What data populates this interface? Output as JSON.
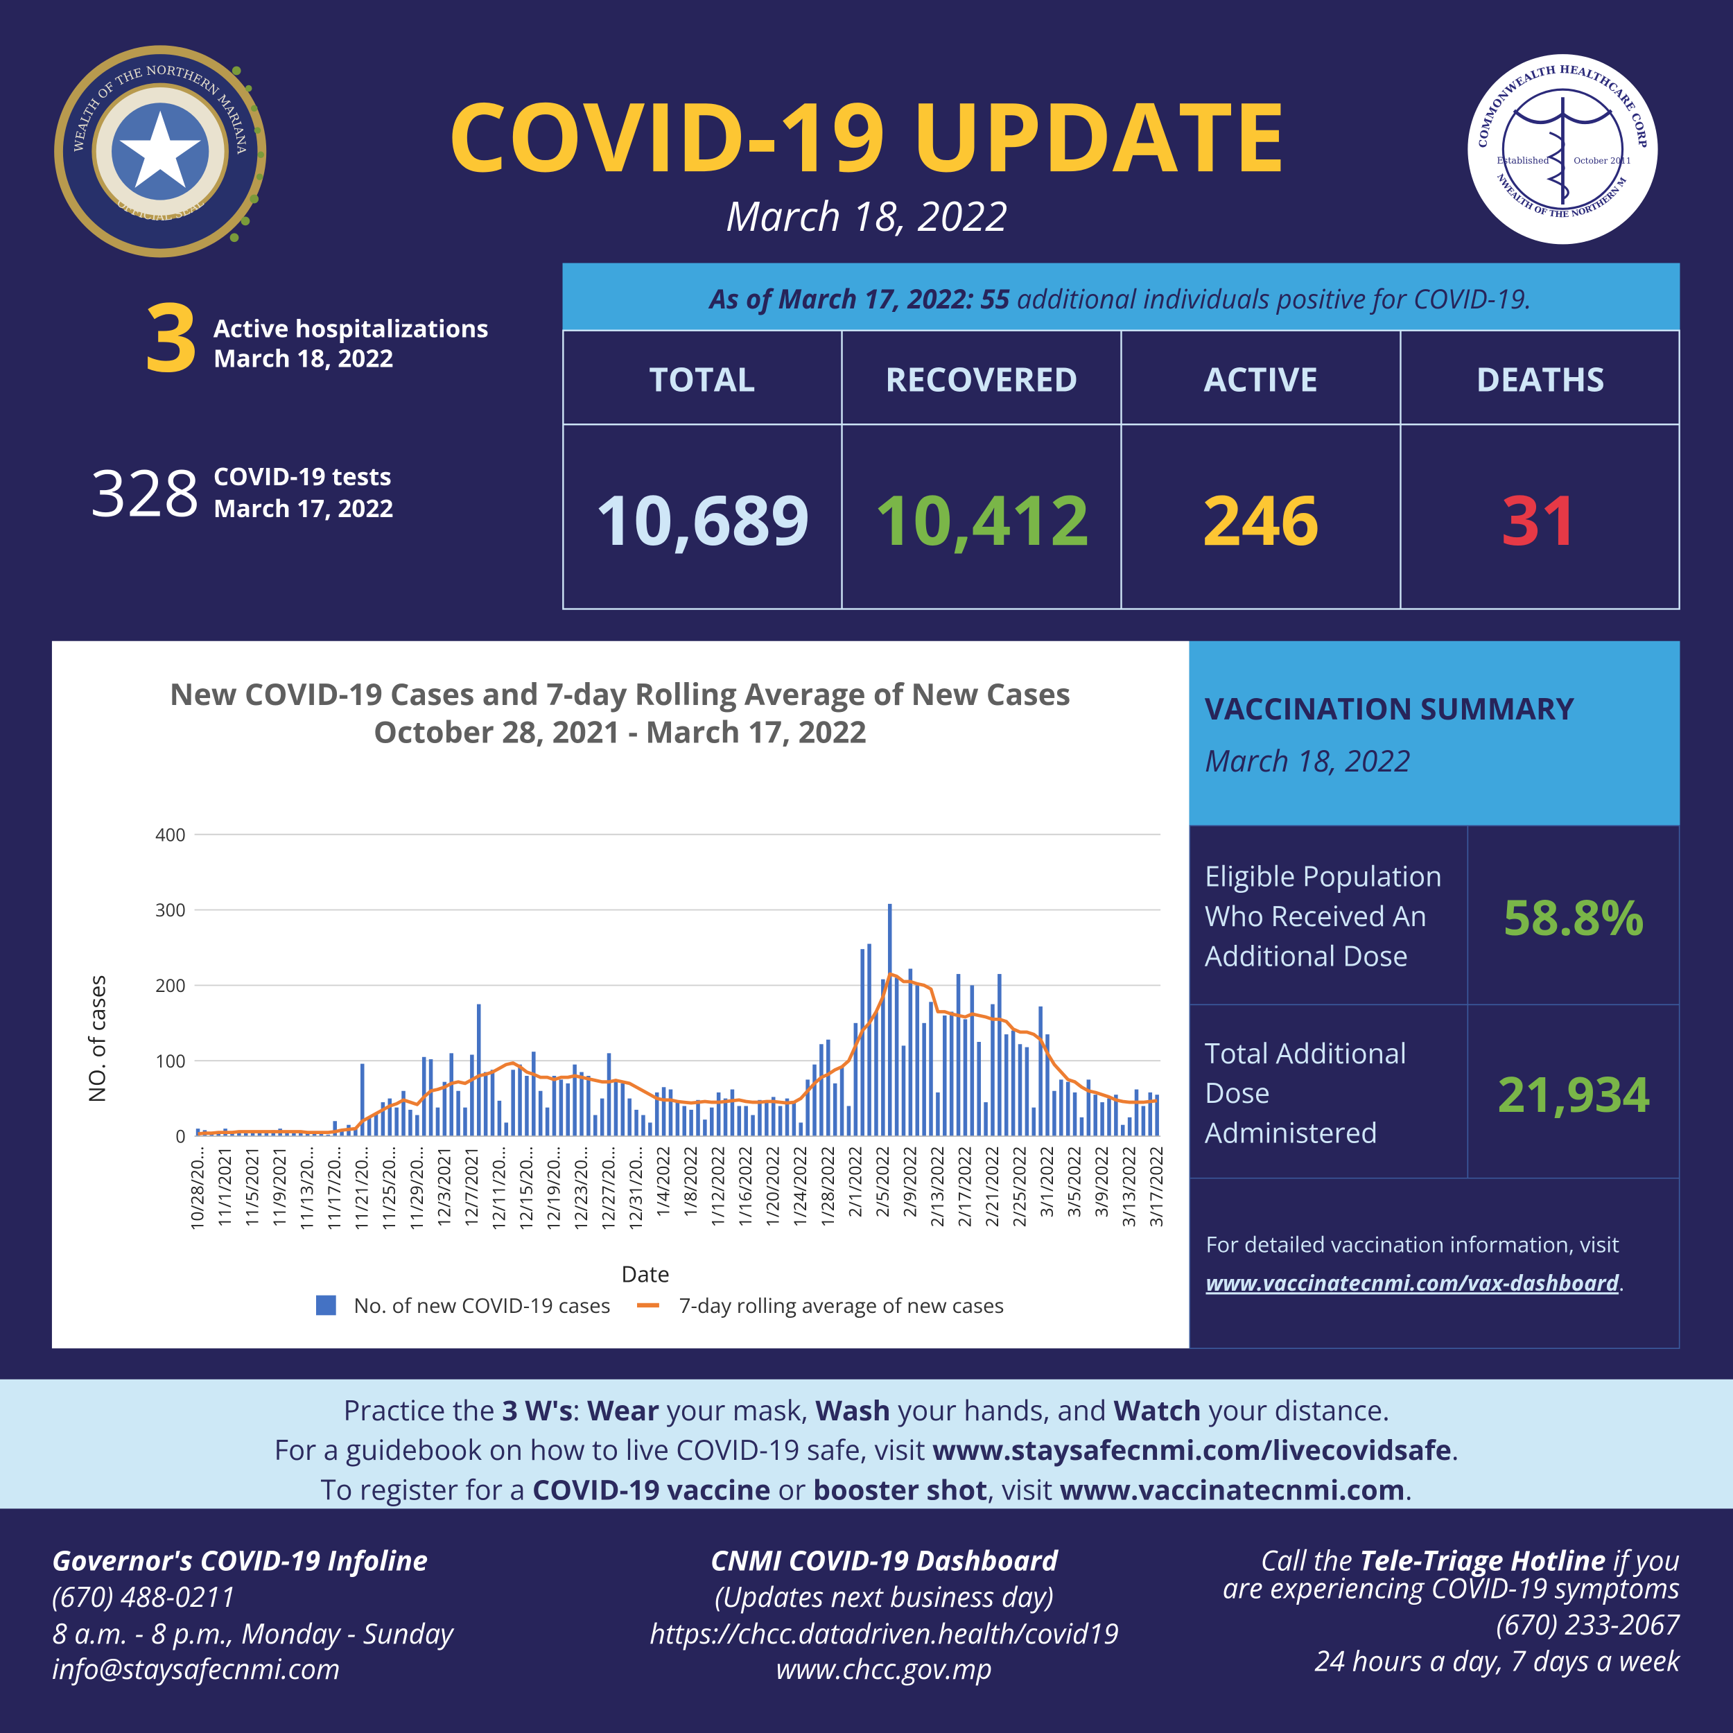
{
  "header": {
    "title": "COVID-19 UPDATE",
    "date": "March 18, 2022"
  },
  "logos": {
    "seal_top": "COMMONWEALTH OF THE NORTHERN MARIANA ISLANDS",
    "seal_bottom": "OFFICIAL SEAL",
    "chcc_top": "COMMONWEALTH HEALTHCARE CORP",
    "chcc_bottom": "COMMONWEALTH OF THE NORTHERN MARIANAS",
    "chcc_left": "Established",
    "chcc_right": "October 2011"
  },
  "hospitalizations": {
    "value": 3,
    "label": "Active hospitalizations",
    "date": "March 18, 2022"
  },
  "tests": {
    "value": 328,
    "label": "COVID-19 tests",
    "date": "March 17, 2022"
  },
  "summary": {
    "lead": "As of March 17, 2022:",
    "count": 55,
    "tail": "additional individuals positive for COVID-19."
  },
  "table": {
    "headers": [
      "TOTAL",
      "RECOVERED",
      "ACTIVE",
      "DEATHS"
    ],
    "values": [
      "10,689",
      "10,412",
      246,
      31
    ]
  },
  "chart_data": {
    "type": "bar",
    "title": [
      "New COVID-19 Cases and 7-day Rolling Average of New Cases",
      "October 28, 2021 - March 17, 2022"
    ],
    "x_label": "Date",
    "y_label": "NO. of cases",
    "categories": [
      "10/28/20...",
      null,
      null,
      null,
      "11/1/2021",
      null,
      null,
      null,
      "11/5/2021",
      null,
      null,
      null,
      "11/9/2021",
      null,
      null,
      null,
      "11/13/20...",
      null,
      null,
      null,
      "11/17/20...",
      null,
      null,
      null,
      "11/21/20...",
      null,
      null,
      null,
      "11/25/20...",
      null,
      null,
      null,
      "11/29/20...",
      null,
      null,
      null,
      "12/3/2021",
      null,
      null,
      null,
      "12/7/2021",
      null,
      null,
      null,
      "12/11/20...",
      null,
      null,
      null,
      "12/15/20...",
      null,
      null,
      null,
      "12/19/20...",
      null,
      null,
      null,
      "12/23/20...",
      null,
      null,
      null,
      "12/27/20...",
      null,
      null,
      null,
      "12/31/20...",
      null,
      null,
      null,
      "1/4/2022",
      null,
      null,
      null,
      "1/8/2022",
      null,
      null,
      null,
      "1/12/2022",
      null,
      null,
      null,
      "1/16/2022",
      null,
      null,
      null,
      "1/20/2022",
      null,
      null,
      null,
      "1/24/2022",
      null,
      null,
      null,
      "1/28/2022",
      null,
      null,
      null,
      "2/1/2022",
      null,
      null,
      null,
      "2/5/2022",
      null,
      null,
      null,
      "2/9/2022",
      null,
      null,
      null,
      "2/13/2022",
      null,
      null,
      null,
      "2/17/2022",
      null,
      null,
      null,
      "2/21/2022",
      null,
      null,
      null,
      "2/25/2022",
      null,
      null,
      null,
      "3/1/2022",
      null,
      null,
      null,
      "3/5/2022",
      null,
      null,
      null,
      "3/9/2022",
      null,
      null,
      null,
      "3/13/2022",
      null,
      null,
      null,
      "3/17/2022"
    ],
    "series": [
      {
        "name": "No. of new COVID-19 cases",
        "color": "#4472c4",
        "type": "bar",
        "values": [
          10,
          8,
          3,
          5,
          10,
          5,
          6,
          4,
          7,
          5,
          6,
          8,
          10,
          6,
          4,
          5,
          5,
          3,
          4,
          2,
          20,
          8,
          15,
          10,
          96,
          25,
          30,
          45,
          50,
          38,
          60,
          35,
          28,
          105,
          102,
          38,
          72,
          110,
          60,
          38,
          108,
          175,
          85,
          88,
          47,
          18,
          88,
          95,
          80,
          112,
          60,
          38,
          80,
          75,
          70,
          95,
          85,
          80,
          28,
          50,
          110,
          75,
          70,
          50,
          35,
          28,
          18,
          58,
          65,
          62,
          45,
          40,
          35,
          48,
          22,
          38,
          58,
          50,
          62,
          40,
          40,
          28,
          48,
          45,
          52,
          40,
          50,
          45,
          18,
          75,
          95,
          122,
          128,
          70,
          92,
          40,
          150,
          248,
          255,
          165,
          208,
          308,
          210,
          120,
          222,
          200,
          150,
          178,
          58,
          160,
          165,
          215,
          155,
          200,
          125,
          45,
          175,
          215,
          135,
          140,
          122,
          118,
          38,
          172,
          135,
          60,
          75,
          72,
          58,
          25,
          75,
          55,
          45,
          50,
          55,
          15,
          25,
          62,
          40,
          58,
          55
        ]
      },
      {
        "name": "7-day rolling average of new cases",
        "color": "#ed7d31",
        "type": "line",
        "values": [
          3,
          4,
          4,
          5,
          5,
          5,
          6,
          6,
          6,
          6,
          6,
          6,
          6,
          6,
          6,
          6,
          5,
          5,
          5,
          5,
          6,
          8,
          9,
          10,
          20,
          25,
          30,
          35,
          40,
          43,
          48,
          45,
          42,
          52,
          60,
          62,
          65,
          70,
          72,
          70,
          75,
          80,
          82,
          85,
          90,
          95,
          97,
          92,
          85,
          82,
          78,
          78,
          75,
          78,
          78,
          80,
          78,
          76,
          74,
          72,
          72,
          74,
          72,
          70,
          65,
          60,
          55,
          50,
          48,
          48,
          46,
          45,
          44,
          45,
          46,
          45,
          45,
          46,
          47,
          48,
          46,
          45,
          45,
          46,
          46,
          45,
          44,
          45,
          50,
          60,
          70,
          78,
          82,
          88,
          92,
          100,
          120,
          140,
          150,
          165,
          185,
          215,
          212,
          205,
          205,
          202,
          200,
          195,
          165,
          165,
          162,
          160,
          158,
          162,
          160,
          158,
          155,
          155,
          152,
          142,
          138,
          138,
          135,
          128,
          110,
          95,
          85,
          75,
          72,
          65,
          60,
          58,
          55,
          52,
          48,
          46,
          45,
          45,
          45,
          46,
          47
        ]
      }
    ],
    "ylim": [
      0,
      400
    ],
    "yticks": [
      0,
      100,
      200,
      300,
      400
    ],
    "grid": true,
    "legend": "bottom"
  },
  "vaccination": {
    "title": "VACCINATION SUMMARY",
    "date": "March 18, 2022",
    "rows": [
      {
        "label": [
          "Eligible Population",
          "Who Received An",
          "Additional Dose"
        ],
        "value": "58.8%"
      },
      {
        "label": [
          "Total Additional",
          "Dose",
          "Administered"
        ],
        "value": "21,934"
      }
    ],
    "note": "For detailed vaccination information, visit",
    "link": "www.vaccinatecnmi.com/vax-dashboard",
    "link_end": "."
  },
  "messages": [
    [
      "Practice the",
      "3 W's",
      ":",
      "Wear",
      "your mask,",
      "Wash",
      "your hands, and",
      "Watch",
      "your distance."
    ],
    [
      "For a guidebook on how to live COVID-19 safe, visit",
      "www.staysafecnmi.com/livecovidsafe",
      "."
    ],
    [
      "To register for a",
      "COVID-19 vaccine",
      "or",
      "booster shot",
      ", visit",
      "www.vaccinatecnmi.com",
      "."
    ]
  ],
  "footer": {
    "left": [
      "Governor's COVID-19 Infoline",
      "(670) 488-0211",
      "8 a.m. - 8 p.m., Monday - Sunday",
      "info@staysafecnmi.com"
    ],
    "center": [
      "CNMI COVID-19 Dashboard",
      "(Updates next business day)",
      "https://chcc.datadriven.health/covid19",
      "www.chcc.gov.mp"
    ],
    "right": {
      "lead": "Call the",
      "bold": "Tele-Triage Hotline",
      "tail": "if you",
      "lines": [
        "are experiencing COVID-19 symptoms",
        "(670) 233-2067",
        "24 hours a day, 7 days a week"
      ]
    }
  }
}
